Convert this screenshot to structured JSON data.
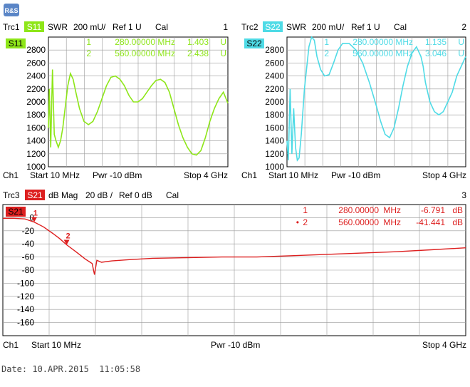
{
  "app": {
    "logo_text": "R&S"
  },
  "date_label": "Date:",
  "date_value": "10.APR.2015  11:05:58",
  "colors": {
    "s11": "#8ee619",
    "s22": "#4fdbe6",
    "s21": "#dd1f1f",
    "grid": "#9a9a9a",
    "axis": "#000000",
    "page": "#ffffff"
  },
  "chart_data": [
    {
      "type": "line",
      "trace": "Trc1",
      "param": "S11",
      "format": "SWR",
      "scale": "200 mU/",
      "ref": "Ref 1 U",
      "cal": "Cal",
      "window": "1",
      "channel": "Ch1",
      "start": "Start  10 MHz",
      "power": "Pwr  -10 dBm",
      "stop": "Stop  4 GHz",
      "ylim": [
        1000,
        2800
      ],
      "yticks": [
        "2800",
        "2600",
        "2400",
        "2200",
        "2000",
        "1800",
        "1600",
        "1400",
        "1200",
        "1000"
      ],
      "xlim_mhz": [
        10,
        4000
      ],
      "grid": true,
      "markers": [
        {
          "num": "1",
          "freq": "280.00000",
          "unit": "MHz",
          "value": "1.403",
          "vunit": "U"
        },
        {
          "num": "2",
          "freq": "560.00000",
          "unit": "MHz",
          "value": "2.438",
          "vunit": "U"
        }
      ],
      "x": [
        10,
        30,
        60,
        100,
        140,
        180,
        230,
        280,
        330,
        380,
        440,
        500,
        560,
        620,
        700,
        800,
        900,
        1000,
        1100,
        1200,
        1300,
        1400,
        1500,
        1600,
        1700,
        1800,
        1900,
        2000,
        2100,
        2200,
        2300,
        2400,
        2500,
        2600,
        2700,
        2800,
        2900,
        3000,
        3100,
        3200,
        3300,
        3400,
        3500,
        3600,
        3700,
        3800,
        3900,
        4000
      ],
      "y": [
        1600,
        2200,
        1300,
        2500,
        1500,
        1400,
        1300,
        1403,
        1600,
        1900,
        2250,
        2438,
        2350,
        2150,
        1900,
        1700,
        1650,
        1700,
        1850,
        2050,
        2250,
        2380,
        2400,
        2350,
        2250,
        2100,
        2000,
        2000,
        2050,
        2150,
        2250,
        2330,
        2350,
        2300,
        2150,
        1900,
        1650,
        1450,
        1300,
        1200,
        1180,
        1250,
        1450,
        1700,
        1900,
        2050,
        2150,
        1980
      ]
    },
    {
      "type": "line",
      "trace": "Trc2",
      "param": "S22",
      "format": "SWR",
      "scale": "200 mU/",
      "ref": "Ref 1 U",
      "cal": "Cal",
      "window": "2",
      "channel": "Ch1",
      "start": "Start  10 MHz",
      "power": "Pwr  -10 dBm",
      "stop": "Stop  4 GHz",
      "ylim": [
        1000,
        2800
      ],
      "yticks": [
        "2800",
        "2600",
        "2400",
        "2200",
        "2000",
        "1800",
        "1600",
        "1400",
        "1200",
        "1000"
      ],
      "xlim_mhz": [
        10,
        4000
      ],
      "grid": true,
      "markers": [
        {
          "num": "1",
          "freq": "280.00000",
          "unit": "MHz",
          "value": "1.135",
          "vunit": "U"
        },
        {
          "num": "2",
          "freq": "560.00000",
          "unit": "MHz",
          "value": "3.046",
          "vunit": "U"
        }
      ],
      "x": [
        10,
        40,
        80,
        120,
        160,
        200,
        240,
        280,
        330,
        400,
        500,
        560,
        620,
        680,
        760,
        850,
        950,
        1050,
        1150,
        1250,
        1400,
        1550,
        1700,
        1850,
        2000,
        2100,
        2200,
        2300,
        2400,
        2500,
        2600,
        2700,
        2800,
        2900,
        3000,
        3050,
        3100,
        3200,
        3300,
        3400,
        3500,
        3600,
        3700,
        3800,
        3900,
        4000
      ],
      "y": [
        1400,
        1100,
        2200,
        1200,
        1900,
        1300,
        1100,
        1135,
        1500,
        2200,
        2850,
        3046,
        2950,
        2700,
        2500,
        2400,
        2420,
        2600,
        2800,
        2900,
        2900,
        2800,
        2600,
        2300,
        1950,
        1700,
        1500,
        1450,
        1600,
        1900,
        2250,
        2550,
        2750,
        2850,
        2700,
        2550,
        2300,
        2000,
        1850,
        1800,
        1850,
        2000,
        2150,
        2400,
        2550,
        2700
      ]
    },
    {
      "type": "line",
      "trace": "Trc3",
      "param": "S21",
      "format": "dB Mag",
      "scale": "20 dB /",
      "ref": "Ref 0 dB",
      "cal": "Cal",
      "window": "3",
      "channel": "Ch1",
      "start": "Start  10 MHz",
      "power": "Pwr  -10 dBm",
      "stop": "Stop  4 GHz",
      "ylim": [
        -180,
        0
      ],
      "yticks": [
        "0",
        "-20",
        "-40",
        "-60",
        "-80",
        "-100",
        "-120",
        "-140",
        "-160"
      ],
      "xlim_mhz": [
        10,
        4000
      ],
      "grid": true,
      "markers": [
        {
          "num": "1",
          "freq": "280.00000",
          "unit": "MHz",
          "value": "-6.791",
          "vunit": "dB"
        },
        {
          "num": "2",
          "freq": "560.00000",
          "unit": "MHz",
          "value": "-41.441",
          "vunit": "dB"
        }
      ],
      "x": [
        10,
        100,
        200,
        280,
        360,
        440,
        500,
        560,
        640,
        720,
        780,
        800,
        820,
        860,
        950,
        1100,
        1300,
        1600,
        1900,
        2200,
        2500,
        2800,
        3100,
        3400,
        3700,
        4000
      ],
      "y": [
        -1,
        -1,
        -2,
        -6.791,
        -14,
        -24,
        -32,
        -41.441,
        -52,
        -63,
        -70,
        -87,
        -65,
        -68,
        -66,
        -64,
        -62,
        -61,
        -60,
        -60,
        -58,
        -56,
        -54,
        -52,
        -49,
        -46
      ]
    }
  ]
}
